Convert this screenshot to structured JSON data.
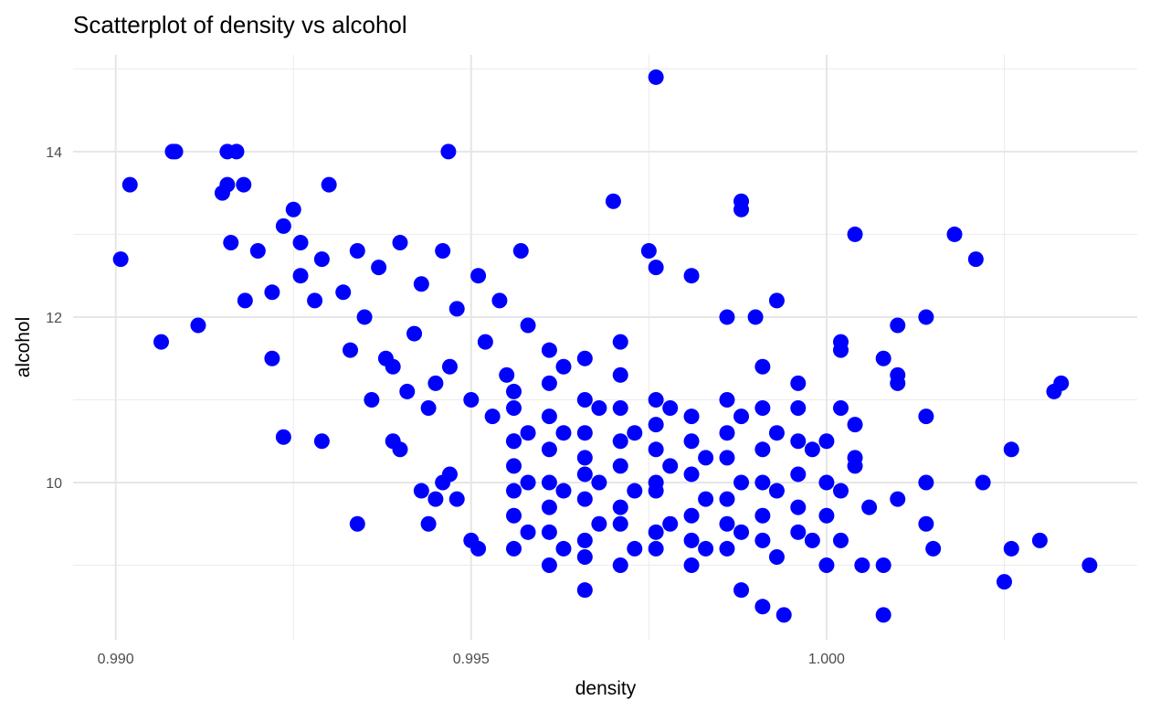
{
  "chart_data": {
    "type": "scatter",
    "title": "Scatterplot of density vs alcohol",
    "x_label": "density",
    "y_label": "alcohol",
    "color": "#0000ff",
    "xlim": [
      0.9894,
      1.00437
    ],
    "ylim": [
      8.1,
      15.17
    ],
    "xticks": [
      {
        "value": 0.99,
        "label": "0.990"
      },
      {
        "value": 0.995,
        "label": "0.995"
      },
      {
        "value": 1.0,
        "label": "1.000"
      }
    ],
    "yticks": [
      10,
      12,
      14
    ],
    "x_minor_ticks": [
      0.9925,
      0.9975,
      1.0025
    ],
    "y_minor_ticks": [
      9,
      11,
      13,
      15
    ],
    "grid": true,
    "x": [
      0.99007,
      0.9902,
      0.99064,
      0.9908,
      0.99084,
      0.99116,
      0.9915,
      0.99157,
      0.99162,
      0.99157,
      0.9917,
      0.9918,
      0.99182,
      0.992,
      0.9922,
      0.9922,
      0.99236,
      0.99236,
      0.9925,
      0.9926,
      0.9929,
      0.993,
      0.9934,
      0.99468,
      0.9976,
      0.997,
      0.9988,
      0.9988,
      1.0004,
      1.0018,
      1.0021,
      1.0033,
      1.0032,
      1.0026,
      1.0022,
      1.0025,
      1.003,
      1.0026,
      1.0037,
      1.0008,
      0.9994,
      0.9991,
      0.9988,
      0.9966,
      1.0014,
      1.001,
      1.0014,
      1.0014,
      1.0014,
      1.0015,
      1.0008,
      1.0002,
      1.0002,
      1.001,
      1.001,
      1.0004,
      1.0004,
      1.0004,
      1.0008,
      1.0005,
      1.001,
      1.0006,
      0.9993,
      0.999,
      0.9986,
      0.9976,
      0.9981,
      0.9975,
      0.9932,
      0.9935,
      0.9937,
      0.9938,
      0.994,
      0.9942,
      0.9943,
      0.9945,
      0.9946,
      0.9947,
      0.9948,
      0.995,
      0.9951,
      0.9952,
      0.9953,
      0.9954,
      0.9955,
      0.9956,
      0.9957,
      0.9958,
      0.9933,
      0.9936,
      0.9939,
      0.9941,
      0.9944,
      0.9934,
      0.9928,
      0.9926,
      0.9929,
      0.9945,
      0.9943,
      0.9946,
      0.9948,
      0.995,
      0.9951,
      0.994,
      0.9939,
      0.9944,
      0.9947,
      0.9956,
      0.9956,
      0.9956,
      0.9956,
      0.9956,
      0.9956,
      0.9956,
      0.9961,
      0.9961,
      0.9961,
      0.9961,
      0.9961,
      0.9961,
      0.9961,
      0.9961,
      0.9966,
      0.9966,
      0.9966,
      0.9966,
      0.9966,
      0.9966,
      0.9966,
      0.9966,
      0.9971,
      0.9971,
      0.9971,
      0.9971,
      0.9971,
      0.9971,
      0.9971,
      0.9971,
      0.9976,
      0.9976,
      0.9976,
      0.9976,
      0.9976,
      0.9976,
      0.9976,
      0.9981,
      0.9981,
      0.9981,
      0.9981,
      0.9981,
      0.9981,
      0.9986,
      0.9986,
      0.9986,
      0.9986,
      0.9986,
      0.9986,
      0.9991,
      0.9991,
      0.9991,
      0.9991,
      0.9991,
      0.9991,
      0.9996,
      0.9996,
      0.9996,
      0.9996,
      0.9996,
      0.9996,
      0.9958,
      0.9958,
      0.9958,
      0.9963,
      0.9963,
      0.9963,
      0.9963,
      0.9968,
      0.9968,
      0.9968,
      0.9973,
      0.9973,
      0.9973,
      0.9978,
      0.9978,
      0.9978,
      0.9983,
      0.9983,
      0.9983,
      0.9988,
      0.9988,
      0.9988,
      0.9993,
      0.9993,
      0.9993,
      0.9998,
      0.9998,
      1.0,
      1.0,
      1.0,
      1.0,
      1.0002,
      1.0002,
      1.0002
    ],
    "values": [
      12.7,
      13.6,
      11.7,
      14.0,
      14.0,
      11.9,
      13.5,
      14.0,
      12.9,
      13.6,
      14.0,
      13.6,
      12.2,
      12.8,
      12.3,
      11.5,
      10.55,
      13.1,
      13.3,
      12.5,
      10.5,
      13.6,
      9.5,
      14.0,
      14.9,
      13.4,
      13.4,
      13.3,
      13.0,
      13.0,
      12.7,
      11.2,
      11.1,
      10.4,
      10.0,
      8.8,
      9.3,
      9.2,
      9.0,
      8.4,
      8.4,
      8.5,
      8.7,
      8.7,
      12.0,
      11.9,
      10.8,
      10.0,
      9.5,
      9.2,
      11.5,
      11.7,
      11.6,
      11.3,
      11.2,
      10.7,
      10.3,
      10.2,
      9.0,
      9.0,
      9.8,
      9.7,
      12.2,
      12.0,
      12.0,
      12.6,
      12.5,
      12.8,
      12.3,
      12.0,
      12.6,
      11.5,
      12.9,
      11.8,
      12.4,
      11.2,
      12.8,
      11.4,
      12.1,
      11.0,
      12.5,
      11.7,
      10.8,
      12.2,
      11.3,
      10.5,
      12.8,
      11.9,
      11.6,
      11.0,
      11.4,
      11.1,
      10.9,
      12.8,
      12.2,
      12.9,
      12.7,
      9.8,
      9.9,
      10.0,
      9.8,
      9.3,
      9.2,
      10.4,
      10.5,
      9.5,
      10.1,
      9.2,
      9.6,
      9.9,
      10.2,
      10.5,
      10.9,
      11.1,
      9.0,
      9.4,
      9.7,
      10.0,
      10.4,
      10.8,
      11.2,
      11.6,
      9.1,
      9.3,
      9.8,
      10.1,
      10.3,
      10.6,
      11.0,
      11.5,
      9.0,
      9.5,
      9.7,
      10.2,
      10.5,
      10.9,
      11.3,
      11.7,
      9.2,
      9.4,
      9.9,
      10.0,
      10.4,
      10.7,
      11.0,
      9.0,
      9.3,
      9.6,
      10.1,
      10.5,
      10.8,
      9.2,
      9.5,
      9.8,
      10.3,
      10.6,
      11.0,
      9.3,
      9.6,
      10.0,
      10.4,
      10.9,
      11.4,
      9.4,
      9.7,
      10.1,
      10.5,
      10.9,
      11.2,
      9.4,
      10.0,
      10.6,
      9.2,
      9.9,
      10.6,
      11.4,
      9.5,
      10.0,
      10.9,
      9.2,
      9.9,
      10.6,
      9.5,
      10.2,
      10.9,
      9.2,
      9.8,
      10.3,
      9.4,
      10.0,
      10.8,
      9.1,
      9.9,
      10.6,
      9.3,
      10.4,
      9.0,
      9.6,
      10.0,
      10.5,
      9.3,
      9.9,
      10.9
    ]
  }
}
